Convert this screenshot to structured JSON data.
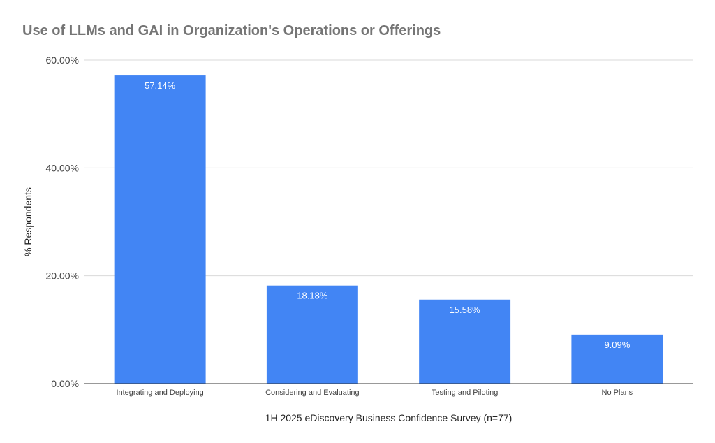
{
  "chart_data": {
    "type": "bar",
    "title": "Use of LLMs and GAI in Organization's Operations or Offerings",
    "xlabel": "1H 2025 eDiscovery Business Confidence Survey (n=77)",
    "ylabel": "% Respondents",
    "categories": [
      "Integrating and Deploying",
      "Considering and Evaluating",
      "Testing and Piloting",
      "No Plans"
    ],
    "values": [
      57.14,
      18.18,
      15.58,
      9.09
    ],
    "data_labels": [
      "57.14%",
      "18.18%",
      "15.58%",
      "9.09%"
    ],
    "ylim": [
      0,
      60
    ],
    "yticks": [
      0,
      20,
      40,
      60
    ],
    "ytick_labels": [
      "0.00%",
      "20.00%",
      "40.00%",
      "60.00%"
    ],
    "grid": true,
    "legend": "none",
    "bar_color": "#4285F4",
    "gridline_color": "#d9d9d9",
    "baseline_color": "#333333"
  }
}
